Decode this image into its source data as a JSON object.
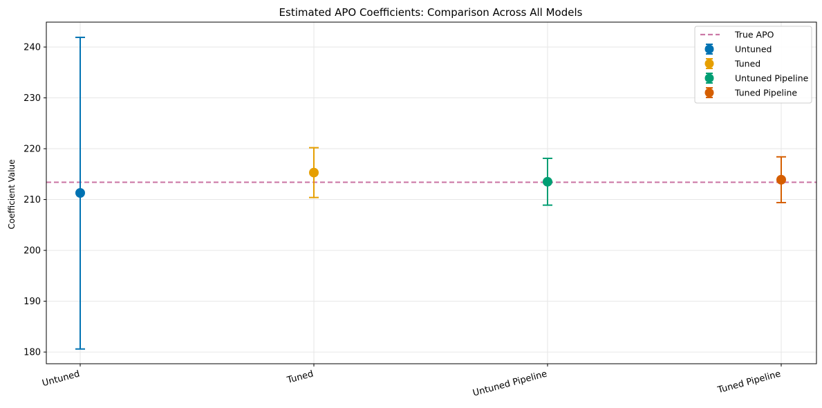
{
  "chart_data": {
    "type": "errorbar",
    "title": "Estimated APO Coefficients: Comparison Across All Models",
    "xlabel": "",
    "ylabel": "Coefficient Value",
    "ylim": [
      177.7,
      244.9
    ],
    "yticks": [
      180,
      190,
      200,
      210,
      220,
      230,
      240
    ],
    "grid": true,
    "legend_position": "top-right",
    "categories": [
      "Untuned",
      "Tuned",
      "Untuned Pipeline",
      "Tuned Pipeline"
    ],
    "series": [
      {
        "name": "Untuned",
        "estimate": 211.3,
        "lower": 180.6,
        "upper": 241.9,
        "color": "#0072b2"
      },
      {
        "name": "Tuned",
        "estimate": 215.3,
        "lower": 210.4,
        "upper": 220.2,
        "color": "#e69f00"
      },
      {
        "name": "Untuned Pipeline",
        "estimate": 213.5,
        "lower": 208.9,
        "upper": 218.1,
        "color": "#009e73"
      },
      {
        "name": "Tuned Pipeline",
        "estimate": 213.9,
        "lower": 209.4,
        "upper": 218.4,
        "color": "#d55e00"
      }
    ],
    "reference_line": {
      "name": "True APO",
      "value": 213.4,
      "color": "#cc79a7",
      "style": "dashed"
    }
  }
}
